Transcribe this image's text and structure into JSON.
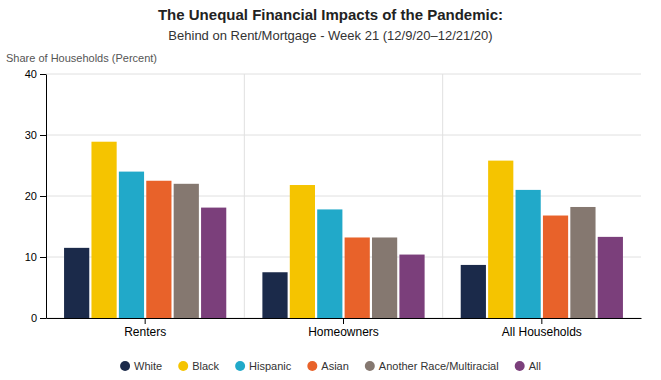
{
  "chart_data": {
    "type": "bar",
    "title": "The Unequal Financial Impacts of the Pandemic:",
    "subtitle": "Behind on Rent/Mortgage - Week 21 (12/9/20–12/21/20)",
    "y_label": "Share of Households (Percent)",
    "categories": [
      "Renters",
      "Homeowners",
      "All Households"
    ],
    "series": [
      {
        "name": "White",
        "color": "#1b2a4a",
        "values": [
          11.5,
          7.5,
          8.7
        ]
      },
      {
        "name": "Black",
        "color": "#f5c400",
        "values": [
          28.9,
          21.8,
          25.8
        ]
      },
      {
        "name": "Hispanic",
        "color": "#21a9c9",
        "values": [
          24.0,
          17.8,
          21.0
        ]
      },
      {
        "name": "Asian",
        "color": "#e8622a",
        "values": [
          22.5,
          13.2,
          16.8
        ]
      },
      {
        "name": "Another Race/Multiracial",
        "color": "#857870",
        "values": [
          22.0,
          13.2,
          18.2
        ]
      },
      {
        "name": "All",
        "color": "#7b3f7b",
        "values": [
          18.1,
          10.4,
          13.3
        ]
      }
    ],
    "ylim": [
      0,
      40
    ],
    "yticks": [
      0,
      10,
      20,
      30,
      40
    ],
    "grid": true,
    "legend": "bottom"
  }
}
